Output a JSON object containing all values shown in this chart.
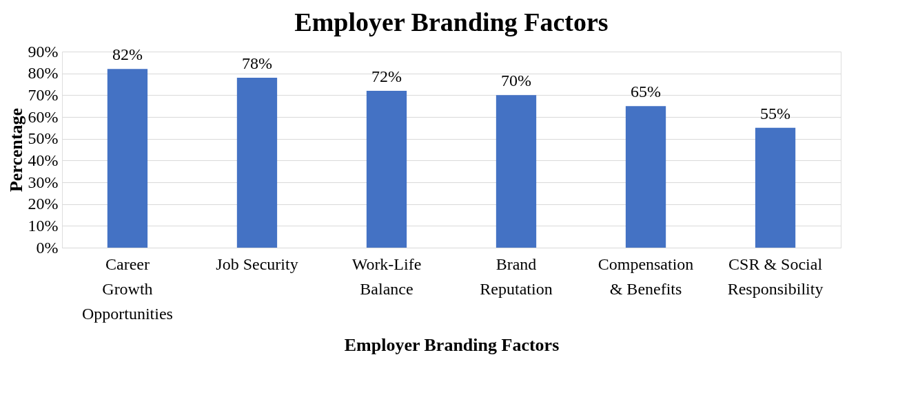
{
  "chart_data": {
    "type": "bar",
    "title": "Employer Branding Factors",
    "xlabel": "Employer Branding Factors",
    "ylabel": "Percentage",
    "categories": [
      "Career Growth Opportunities",
      "Job Security",
      "Work-Life Balance",
      "Brand Reputation",
      "Compensation & Benefits",
      "CSR & Social Responsibility"
    ],
    "values": [
      82,
      78,
      72,
      70,
      65,
      55
    ],
    "color": "#4472c4",
    "value_labels": [
      "82%",
      "78%",
      "72%",
      "70%",
      "65%",
      "55%"
    ],
    "ylim": [
      0,
      90
    ],
    "yticks": [
      {
        "value": 0,
        "label": "0%"
      },
      {
        "value": 10,
        "label": "10%"
      },
      {
        "value": 20,
        "label": "20%"
      },
      {
        "value": 30,
        "label": "30%"
      },
      {
        "value": 40,
        "label": "40%"
      },
      {
        "value": 50,
        "label": "50%"
      },
      {
        "value": 60,
        "label": "60%"
      },
      {
        "value": 70,
        "label": "70%"
      },
      {
        "value": 80,
        "label": "80%"
      },
      {
        "value": 90,
        "label": "90%"
      }
    ],
    "grid": "y"
  }
}
